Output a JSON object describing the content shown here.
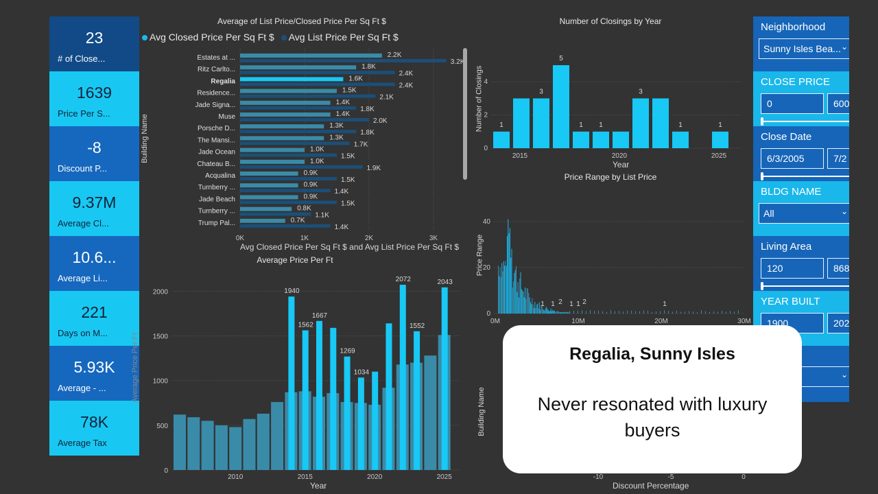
{
  "kpis": [
    {
      "value": "23",
      "label": "# of Close..."
    },
    {
      "value": "1639",
      "label": "Price Per S..."
    },
    {
      "value": "-8",
      "label": "Discount P..."
    },
    {
      "value": "9.37M",
      "label": "Average Cl..."
    },
    {
      "value": "10.6...",
      "label": "Average Li..."
    },
    {
      "value": "221",
      "label": "Days on M..."
    },
    {
      "value": "5.93K",
      "label": "Average - ..."
    },
    {
      "value": "78K",
      "label": "Average Tax"
    }
  ],
  "colors": {
    "closed": "#1ab8ee",
    "list": "#1b4f78",
    "teal": "#3a8ba8",
    "panel": "#1665b8",
    "panel_cyan": "#1ab7ea"
  },
  "hbar_chart": {
    "title": "Average of List Price/Closed Price Per Sq Ft $",
    "legend": [
      "Avg Closed Price Per Sq Ft $",
      "Avg List Price Per Sq Ft $"
    ],
    "xlabel": "Avg Closed Price Per Sq Ft $ and Avg List Price Per Sq Ft $",
    "ylabel": "Building Name",
    "x_ticks": [
      "0K",
      "1K",
      "2K",
      "3K"
    ]
  },
  "closings_chart": {
    "title": "Number of Closings by Year",
    "xlabel": "Year",
    "ylabel": "Number of Closings",
    "x_ticks": [
      "2015",
      "2020",
      "2025"
    ],
    "y_ticks": [
      "0",
      "2",
      "4"
    ]
  },
  "price_range_chart": {
    "title": "Price Range by List Price",
    "ylabel": "Price Range",
    "x_ticks": [
      "0M",
      "10M",
      "20M",
      "30M"
    ],
    "y_ticks": [
      "0",
      "20",
      "40"
    ],
    "point_labels": [
      "1",
      "1",
      "2",
      "1",
      "1",
      "2",
      "1"
    ]
  },
  "ppf_chart": {
    "title": "Average Price Per Ft",
    "xlabel": "Year",
    "ylabel": "Average Price Per Ft",
    "x_ticks": [
      "2010",
      "2015",
      "2020",
      "2025"
    ],
    "y_ticks": [
      "0",
      "500",
      "1000",
      "1500",
      "2000"
    ]
  },
  "discount_chart": {
    "ylabel": "Building Name",
    "xlabel": "Discount Percentage",
    "x_ticks": [
      "-10",
      "-5",
      "0"
    ]
  },
  "chart_data": [
    {
      "type": "bar",
      "title": "Average of List Price/Closed Price Per Sq Ft $",
      "orientation": "horizontal",
      "categories": [
        "Estates at ...",
        "Ritz Carlto...",
        "Regalia",
        "Residence...",
        "Jade Signa...",
        "Muse",
        "Porsche D...",
        "The Mansi...",
        "Jade Ocean",
        "Chateau B...",
        "Acqualina",
        "Turnberry ...",
        "Jade Beach",
        "Turnberry ...",
        "Trump Pal..."
      ],
      "series": [
        {
          "name": "Avg Closed Price Per Sq Ft $",
          "values": [
            2200,
            1800,
            1600,
            1500,
            1400,
            1400,
            1300,
            1300,
            1000,
            1000,
            900,
            900,
            900,
            800,
            700
          ],
          "labels": [
            "2.2K",
            "1.8K",
            "1.6K",
            "1.5K",
            "1.4K",
            "1.4K",
            "1.3K",
            "1.3K",
            "1.0K",
            "1.0K",
            "0.9K",
            "0.9K",
            "0.9K",
            "0.8K",
            "0.7K"
          ]
        },
        {
          "name": "Avg List Price Per Sq Ft $",
          "values": [
            3200,
            2400,
            2400,
            2100,
            1800,
            2000,
            1800,
            1700,
            1500,
            1900,
            1500,
            1400,
            1500,
            1100,
            1400
          ],
          "labels": [
            "3.2K",
            "2.4K",
            "2.4K",
            "2.1K",
            "1.8K",
            "2.0K",
            "1.8K",
            "1.7K",
            "1.5K",
            "1.9K",
            "1.5K",
            "1.4K",
            "1.5K",
            "1.1K",
            "1.4K"
          ]
        }
      ],
      "xlim": [
        0,
        3500
      ],
      "xlabel": "Avg Closed Price Per Sq Ft $ and Avg List Price Per Sq Ft $",
      "ylabel": "Building Name",
      "legend": "top"
    },
    {
      "type": "bar",
      "title": "Number of Closings by Year",
      "x": [
        2014,
        2015,
        2016,
        2017,
        2018,
        2019,
        2020,
        2021,
        2022,
        2023,
        2025
      ],
      "values": [
        1,
        3,
        3,
        5,
        1,
        1,
        1,
        3,
        3,
        1,
        1
      ],
      "labeled": [
        true,
        false,
        true,
        true,
        true,
        true,
        false,
        true,
        false,
        true,
        true
      ],
      "xlabel": "Year",
      "ylabel": "Number of Closings",
      "ylim": [
        0,
        5
      ]
    },
    {
      "type": "bar",
      "title": "Average Price Per Ft",
      "x": [
        2006,
        2007,
        2008,
        2009,
        2010,
        2011,
        2012,
        2013,
        2014,
        2015,
        2016,
        2017,
        2018,
        2019,
        2020,
        2021,
        2022,
        2023,
        2024,
        2025
      ],
      "series": [
        {
          "name": "background",
          "values": [
            620,
            590,
            550,
            500,
            480,
            570,
            630,
            760,
            870,
            880,
            820,
            860,
            760,
            750,
            730,
            920,
            1180,
            1200,
            1280,
            1510
          ]
        },
        {
          "name": "foreground",
          "values": [
            null,
            null,
            null,
            null,
            null,
            null,
            null,
            null,
            1940,
            1562,
            1667,
            1590,
            1269,
            1034,
            1100,
            1640,
            2072,
            1552,
            null,
            2043
          ],
          "labels": [
            "",
            "",
            "",
            "",
            "",
            "",
            "",
            "",
            "1940",
            "1562",
            "1667",
            "",
            "1269",
            "1034",
            "",
            "",
            "2072",
            "1552",
            "",
            "2043"
          ]
        }
      ],
      "xlabel": "Year",
      "ylabel": "Average Price Per Ft",
      "ylim": [
        0,
        2100
      ]
    }
  ],
  "slicers": {
    "neighborhood": {
      "label": "Neighborhood",
      "value": "Sunny Isles Bea..."
    },
    "close_price": {
      "label": "CLOSE PRICE",
      "min": "0",
      "max": "600"
    },
    "close_date": {
      "label": "Close Date",
      "min": "6/3/2005",
      "max": "7/2"
    },
    "bldg_name": {
      "label": "BLDG NAME",
      "value": "All"
    },
    "living_area": {
      "label": "Living Area",
      "min": "120",
      "max": "868"
    },
    "year_built": {
      "label": "YEAR BUILT",
      "min": "1900",
      "max": "202"
    }
  },
  "callout": {
    "title": "Regalia, Sunny Isles",
    "body": "Never resonated with luxury buyers"
  }
}
